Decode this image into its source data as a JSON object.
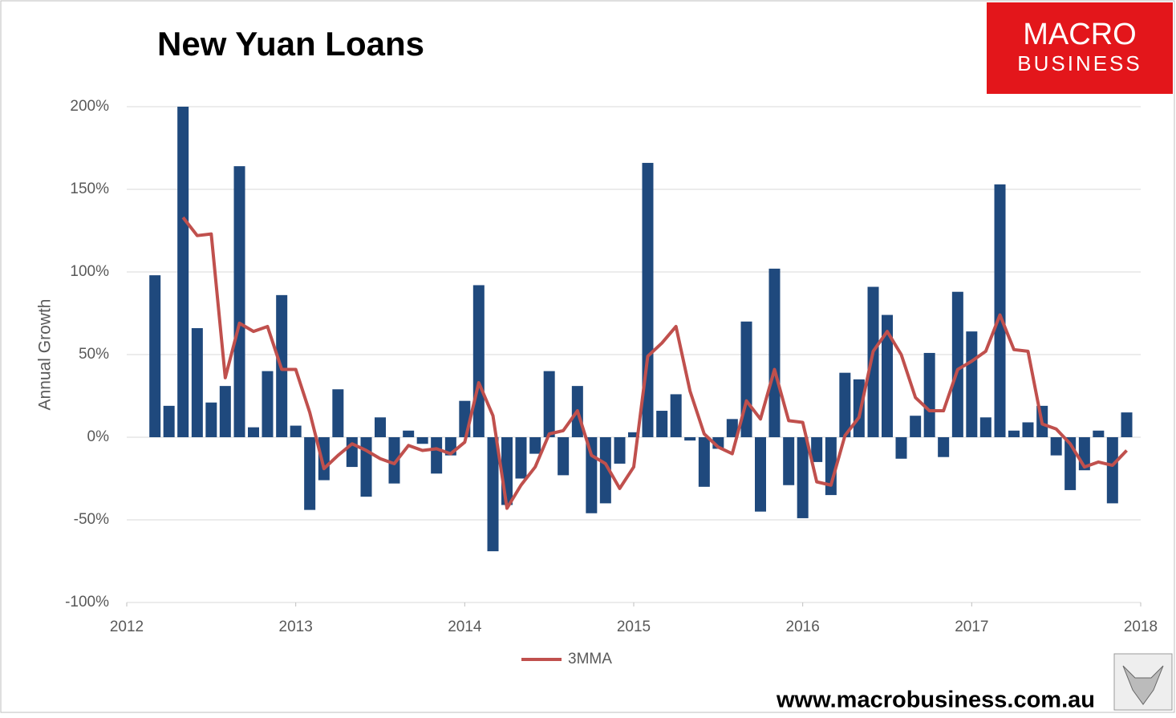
{
  "chart_data": {
    "type": "bar",
    "title": "New Yuan Loans",
    "ylabel": "Annual Growth",
    "logo": [
      "MACRO",
      "BUSINESS"
    ],
    "source": "www.macrobusiness.com.au",
    "x": [
      2012.167,
      2012.25,
      2012.333,
      2012.417,
      2012.5,
      2012.583,
      2012.667,
      2012.75,
      2012.833,
      2012.917,
      2013.0,
      2013.083,
      2013.167,
      2013.25,
      2013.333,
      2013.417,
      2013.5,
      2013.583,
      2013.667,
      2013.75,
      2013.833,
      2013.917,
      2014.0,
      2014.083,
      2014.167,
      2014.25,
      2014.333,
      2014.417,
      2014.5,
      2014.583,
      2014.667,
      2014.75,
      2014.833,
      2014.917,
      2015.0,
      2015.083,
      2015.167,
      2015.25,
      2015.333,
      2015.417,
      2015.5,
      2015.583,
      2015.667,
      2015.75,
      2015.833,
      2015.917,
      2016.0,
      2016.083,
      2016.167,
      2016.25,
      2016.333,
      2016.417,
      2016.5,
      2016.583,
      2016.667,
      2016.75,
      2016.833,
      2016.917,
      2017.0,
      2017.083,
      2017.167,
      2017.25,
      2017.333,
      2017.417,
      2017.5,
      2017.583,
      2017.667,
      2017.75,
      2017.833,
      2017.917
    ],
    "series": [
      {
        "color": "#1f497d",
        "values": [
          98,
          19,
          200,
          66,
          21,
          31,
          164,
          6,
          40,
          86,
          7,
          -44,
          -26,
          29,
          -18,
          -36,
          12,
          -28,
          4,
          -4,
          -22,
          -11,
          22,
          92,
          -69,
          -41,
          -25,
          -10,
          40,
          -23,
          31,
          -46,
          -40,
          -16,
          3,
          166,
          16,
          26,
          -2,
          -30,
          -7,
          11,
          70,
          -45,
          102,
          -29,
          -49,
          -15,
          -35,
          39,
          35,
          91,
          74,
          -13,
          13,
          51,
          -12,
          88,
          64,
          12,
          153,
          4,
          9,
          19,
          -11,
          -32,
          -20,
          4,
          -40,
          15
        ]
      },
      {
        "name": "3MMA",
        "type": "line",
        "color": "#c0504d",
        "values": [
          null,
          null,
          133,
          122,
          123,
          36,
          69,
          64,
          67,
          41,
          41,
          15,
          -19,
          -11,
          -4,
          -8,
          -13,
          -16,
          -5,
          -8,
          -7,
          -10,
          -3,
          33,
          13,
          -43,
          -29,
          -18,
          2,
          4,
          16,
          -11,
          -16,
          -31,
          -18,
          49,
          57,
          67,
          28,
          2,
          -6,
          -10,
          22,
          11,
          41,
          10,
          9,
          -27,
          -29,
          1,
          12,
          52,
          64,
          50,
          24,
          16,
          16,
          41,
          46,
          52,
          74,
          53,
          52,
          8,
          5,
          -4,
          -18,
          -15,
          -17,
          -8
        ]
      }
    ],
    "xlim": [
      2012,
      2018
    ],
    "xticks": [
      2012,
      2013,
      2014,
      2015,
      2016,
      2017,
      2018
    ],
    "ylim": [
      -100,
      200
    ],
    "yticks": [
      {
        "value": -100,
        "label": "-100%"
      },
      {
        "value": -50,
        "label": "-50%"
      },
      {
        "value": 0,
        "label": "0%"
      },
      {
        "value": 50,
        "label": "50%"
      },
      {
        "value": 100,
        "label": "100%"
      },
      {
        "value": 150,
        "label": "150%"
      },
      {
        "value": 200,
        "label": "200%"
      }
    ],
    "grid": true
  }
}
